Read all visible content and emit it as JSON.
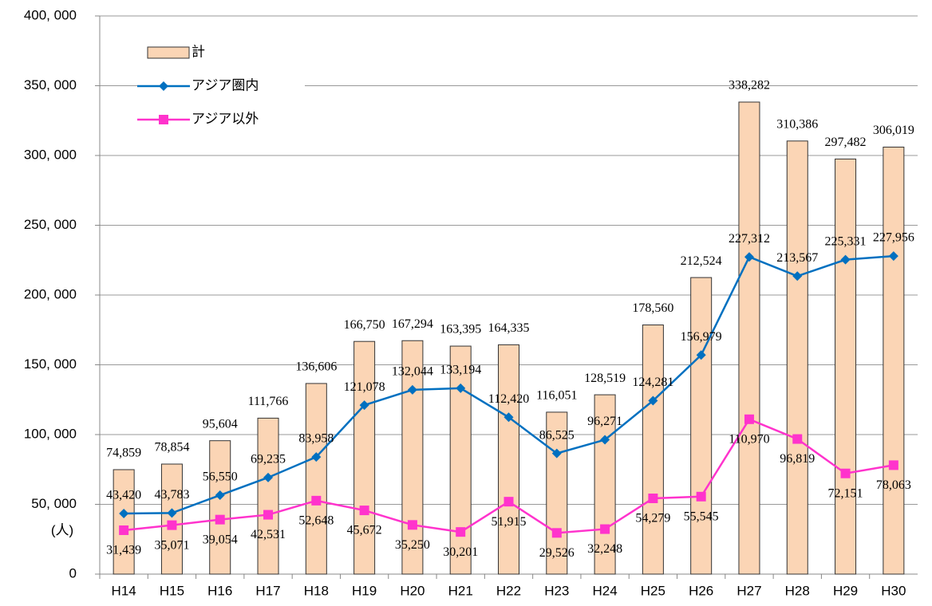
{
  "chart_data": {
    "type": "combo",
    "y_unit_label": "(人)",
    "categories": [
      "H14",
      "H15",
      "H16",
      "H17",
      "H18",
      "H19",
      "H20",
      "H21",
      "H22",
      "H23",
      "H24",
      "H25",
      "H26",
      "H27",
      "H28",
      "H29",
      "H30"
    ],
    "series": [
      {
        "name": "計",
        "type": "bar",
        "color": "#fbd5b5",
        "values": [
          74859,
          78854,
          95604,
          111766,
          136606,
          166750,
          167294,
          163395,
          164335,
          116051,
          128519,
          178560,
          212524,
          338282,
          310386,
          297482,
          306019
        ],
        "value_labels": [
          "74,859",
          "78,854",
          "95,604",
          "111,766",
          "136,606",
          "166,750",
          "167,294",
          "163,395",
          "164,335",
          "116,051",
          "128,519",
          "178,560",
          "212,524",
          "338,282",
          "310,386",
          "297,482",
          "306,019"
        ]
      },
      {
        "name": "アジア圏内",
        "type": "line",
        "marker": "diamond",
        "color": "#0070c0",
        "values": [
          43420,
          43783,
          56550,
          69235,
          83958,
          121078,
          132044,
          133194,
          112420,
          86525,
          96271,
          124281,
          156979,
          227312,
          213567,
          225331,
          227956
        ],
        "value_labels": [
          "43,420",
          "43,783",
          "56,550",
          "69,235",
          "83,958",
          "121,078",
          "132,044",
          "133,194",
          "112,420",
          "86,525",
          "96,271",
          "124,281",
          "156,979",
          "227,312",
          "213,567",
          "225,331",
          "227,956"
        ]
      },
      {
        "name": "アジア以外",
        "type": "line",
        "marker": "square",
        "color": "#ff33cc",
        "values": [
          31439,
          35071,
          39054,
          42531,
          52648,
          45672,
          35250,
          30201,
          51915,
          29526,
          32248,
          54279,
          55545,
          110970,
          96819,
          72151,
          78063
        ],
        "value_labels": [
          "31,439",
          "35,071",
          "39,054",
          "42,531",
          "52,648",
          "45,672",
          "35,250",
          "30,201",
          "51,915",
          "29,526",
          "32,248",
          "54,279",
          "55,545",
          "110,970",
          "96,819",
          "72,151",
          "78,063"
        ]
      }
    ],
    "ylim": [
      0,
      400000
    ],
    "yticks": [
      0,
      {
        "value": 50000,
        "label": "50, 000"
      },
      {
        "value": 100000,
        "label": "100, 000"
      },
      {
        "value": 150000,
        "label": "150, 000"
      },
      {
        "value": 200000,
        "label": "200, 000"
      },
      {
        "value": 250000,
        "label": "250, 000"
      },
      {
        "value": 300000,
        "label": "300, 000"
      },
      {
        "value": 350000,
        "label": "350, 000"
      },
      {
        "value": 400000,
        "label": "400, 000"
      }
    ],
    "grid": true,
    "legend": "upper left"
  }
}
